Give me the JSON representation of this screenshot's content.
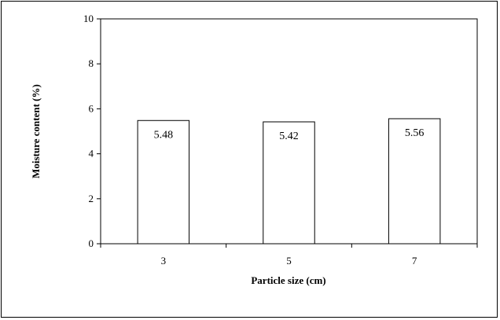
{
  "chart_data": {
    "type": "bar",
    "title": "",
    "xlabel": "Particle size (cm)",
    "ylabel": "Moisture content (%)",
    "categories": [
      "3",
      "5",
      "7"
    ],
    "values": [
      5.48,
      5.42,
      5.56
    ],
    "value_labels": [
      "5.48",
      "5.42",
      "5.56"
    ],
    "ylim": [
      0,
      10
    ],
    "yticks": [
      "0",
      "2",
      "4",
      "6",
      "8",
      "10"
    ],
    "grid": false,
    "legend": "none",
    "bar_fill": "#ffffff",
    "bar_stroke": "#000000"
  }
}
